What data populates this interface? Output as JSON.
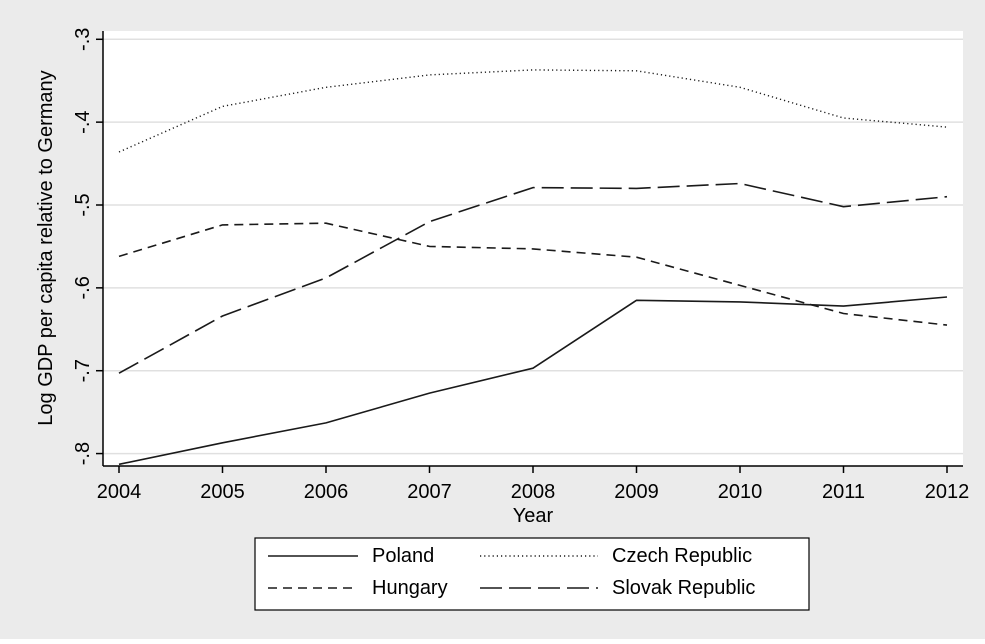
{
  "chart_data": {
    "type": "line",
    "title": "",
    "xlabel": "Year",
    "ylabel": "Log GDP per capita relative to Germany",
    "x": [
      2004,
      2005,
      2006,
      2007,
      2008,
      2009,
      2010,
      2011,
      2012
    ],
    "x_ticks": [
      "2004",
      "2005",
      "2006",
      "2007",
      "2008",
      "2009",
      "2010",
      "2011",
      "2012"
    ],
    "y_ticks": [
      {
        "value": -0.3,
        "label": "-.3"
      },
      {
        "value": -0.4,
        "label": "-.4"
      },
      {
        "value": -0.5,
        "label": "-.5"
      },
      {
        "value": -0.6,
        "label": "-.6"
      },
      {
        "value": -0.7,
        "label": "-.7"
      },
      {
        "value": -0.8,
        "label": "-.8"
      }
    ],
    "ylim": [
      -0.815,
      -0.29
    ],
    "xlim": [
      2004,
      2012
    ],
    "grid": true,
    "legend_position": "bottom",
    "series": [
      {
        "name": "Poland",
        "style": "solid",
        "values": [
          -0.813,
          -0.787,
          -0.763,
          -0.727,
          -0.697,
          -0.615,
          -0.617,
          -0.622,
          -0.611
        ]
      },
      {
        "name": "Czech Republic",
        "style": "dotted",
        "values": [
          -0.436,
          -0.381,
          -0.358,
          -0.343,
          -0.337,
          -0.338,
          -0.358,
          -0.395,
          -0.406
        ]
      },
      {
        "name": "Hungary",
        "style": "dashed",
        "values": [
          -0.562,
          -0.524,
          -0.522,
          -0.55,
          -0.553,
          -0.563,
          -0.597,
          -0.631,
          -0.645
        ]
      },
      {
        "name": "Slovak Republic",
        "style": "longdash",
        "values": [
          -0.703,
          -0.634,
          -0.588,
          -0.52,
          -0.479,
          -0.48,
          -0.474,
          -0.502,
          -0.49
        ]
      }
    ],
    "colors": {
      "background": "#ebebeb",
      "plot": "#ffffff",
      "line": "#1a1a1a",
      "grid": "#e0e0e0"
    }
  }
}
